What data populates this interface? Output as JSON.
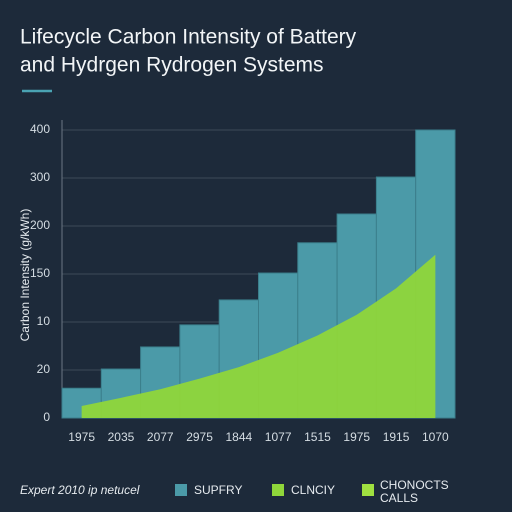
{
  "chart_data": {
    "type": "bar-area",
    "title": [
      "Lifecycle Carbon Intensity of Battery",
      "and Hydrgen Rydrogen Systems"
    ],
    "ylabel": "Carbon Intensity (g/kWh)",
    "note": "Expert 2010 ip netucel",
    "categories": [
      "1975",
      "2035",
      "2077",
      "2975",
      "1844",
      "1077",
      "1515",
      "1975",
      "1915",
      "1070"
    ],
    "series": [
      {
        "name": "SUPFRY",
        "color": "#4b9aa8",
        "values": [
          0.62,
          1.02,
          1.48,
          1.94,
          2.46,
          3.02,
          3.65,
          4.25,
          5.02,
          6.0
        ]
      },
      {
        "name": "CLNCIY",
        "color": "#8fd63a",
        "values": [
          0.25,
          0.42,
          0.6,
          0.82,
          1.06,
          1.36,
          1.72,
          2.15,
          2.7,
          3.4
        ]
      }
    ],
    "extra_legend": {
      "label": [
        "CHONOCTS",
        "CALLS"
      ],
      "color": "#9fe040"
    },
    "ylim": [
      0,
      6
    ],
    "yticks": [
      {
        "value": 0,
        "label": "0"
      },
      {
        "value": 1,
        "label": "20"
      },
      {
        "value": 2,
        "label": "10"
      },
      {
        "value": 3,
        "label": "150"
      },
      {
        "value": 4,
        "label": "200"
      },
      {
        "value": 5,
        "label": "300"
      },
      {
        "value": 6,
        "label": "400"
      }
    ],
    "grid": true
  }
}
